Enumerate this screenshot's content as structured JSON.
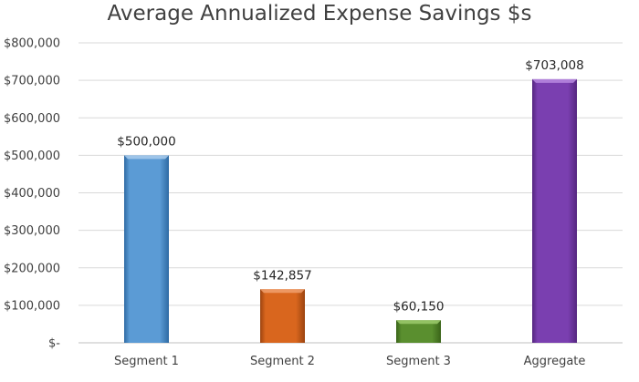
{
  "chart_data": {
    "type": "bar",
    "title": "Average Annualized Expense Savings $s",
    "xlabel": "",
    "ylabel": "",
    "categories": [
      "Segment 1",
      "Segment 2",
      "Segment 3",
      "Aggregate"
    ],
    "values": [
      500000,
      142857,
      60150,
      703008
    ],
    "data_labels": [
      "$500,000",
      "$142,857",
      "$60,150",
      "$703,008"
    ],
    "ylim": [
      0,
      800000
    ],
    "y_ticks": [
      0,
      100000,
      200000,
      300000,
      400000,
      500000,
      600000,
      700000,
      800000
    ],
    "y_tick_labels": [
      "$-",
      "$100,000",
      "$200,000",
      "$300,000",
      "$400,000",
      "$500,000",
      "$600,000",
      "$700,000",
      "$800,000"
    ],
    "grid": true,
    "legend": "none",
    "bar_colors": [
      "#5b9bd5",
      "#d9661e",
      "#5a8f2f",
      "#7a3fb0"
    ],
    "bar_dark_colors": [
      "#2e6aa3",
      "#9c4410",
      "#3a6419",
      "#542680"
    ],
    "bar_light_colors": [
      "#a9cbec",
      "#f0a06e",
      "#9ccb6c",
      "#b88ae0"
    ]
  }
}
